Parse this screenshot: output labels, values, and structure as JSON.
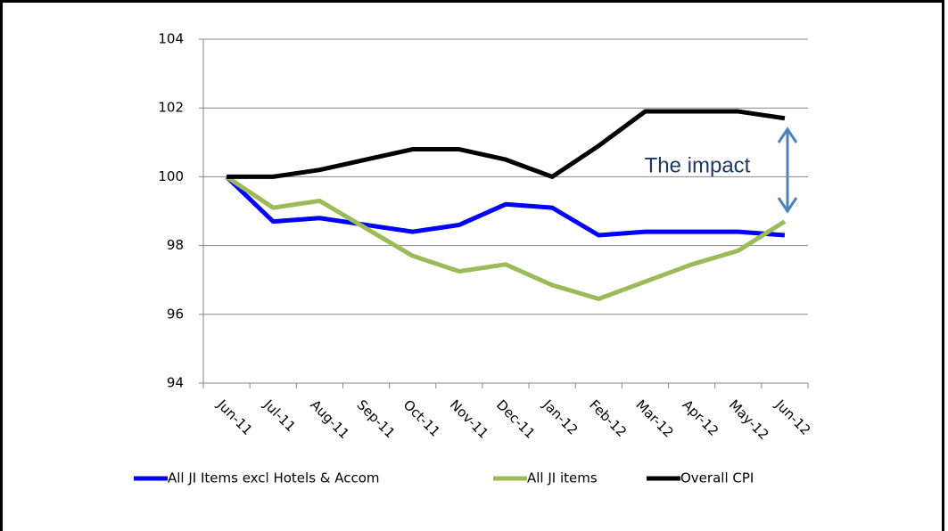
{
  "chart_data": {
    "type": "line",
    "annotation": "The impact",
    "categories": [
      "Jun-11",
      "Jul-11",
      "Aug-11",
      "Sep-11",
      "Oct-11",
      "Nov-11",
      "Dec-11",
      "Jan-12",
      "Feb-12",
      "Mar-12",
      "Apr-12",
      "May-12",
      "Jun-12"
    ],
    "series": [
      {
        "name": "All JI Items excl Hotels & Accom",
        "color": "#0000ff",
        "values": [
          100,
          98.7,
          98.8,
          98.6,
          98.4,
          98.6,
          99.2,
          99.1,
          98.3,
          98.4,
          98.4,
          98.4,
          98.3
        ]
      },
      {
        "name": "All JI items",
        "color": "#9bbb59",
        "values": [
          100,
          99.1,
          99.3,
          98.5,
          97.7,
          97.25,
          97.45,
          96.85,
          96.45,
          96.95,
          97.45,
          97.85,
          98.7
        ]
      },
      {
        "name": "Overall CPI",
        "color": "#000000",
        "values": [
          100,
          100,
          100.2,
          100.5,
          100.8,
          100.8,
          100.5,
          100,
          100.9,
          101.9,
          101.9,
          101.9,
          101.7
        ]
      }
    ],
    "ylim": [
      94,
      104
    ],
    "yticks": [
      94,
      96,
      98,
      100,
      102,
      104
    ],
    "grid": true
  }
}
